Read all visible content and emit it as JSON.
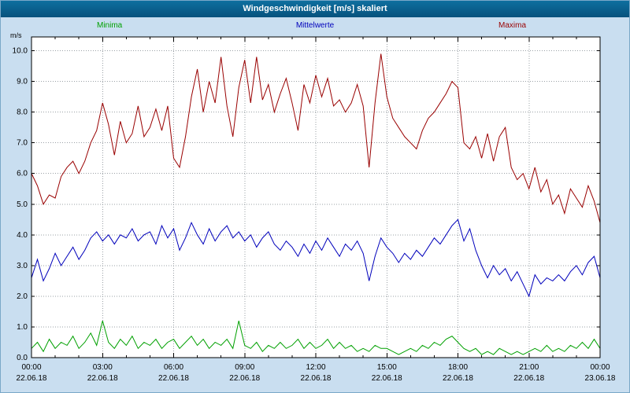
{
  "window": {
    "title": "Windgeschwindigkeit [m/s] skaliert"
  },
  "colors": {
    "page-bg": "#c9def0",
    "titlebar-start": "#0e6f9f",
    "titlebar-end": "#07527d",
    "plot-bg": "#ffffff"
  },
  "chart_data": {
    "type": "line",
    "title": "Windgeschwindigkeit [m/s] skaliert",
    "ylabel_unit": "m/s",
    "ylim": [
      0,
      10.45
    ],
    "yticks": [
      "0.0",
      "1.0",
      "2.0",
      "3.0",
      "4.0",
      "5.0",
      "6.0",
      "7.0",
      "8.0",
      "9.0",
      "10.0"
    ],
    "x_range_hours": [
      0,
      24
    ],
    "x_step_hours": 0.25,
    "grid": true,
    "legend_position": "top",
    "xticks": [
      {
        "hour": 0,
        "time": "00:00",
        "date": "22.06.18"
      },
      {
        "hour": 3,
        "time": "03:00",
        "date": "22.06.18"
      },
      {
        "hour": 6,
        "time": "06:00",
        "date": "22.06.18"
      },
      {
        "hour": 9,
        "time": "09:00",
        "date": "22.06.18"
      },
      {
        "hour": 12,
        "time": "12:00",
        "date": "22.06.18"
      },
      {
        "hour": 15,
        "time": "15:00",
        "date": "22.06.18"
      },
      {
        "hour": 18,
        "time": "18:00",
        "date": "22.06.18"
      },
      {
        "hour": 21,
        "time": "21:00",
        "date": "22.06.18"
      },
      {
        "hour": 24,
        "time": "00:00",
        "date": "23.06.18"
      }
    ],
    "series": [
      {
        "name": "Minima",
        "color": "#00a000",
        "values": [
          0.3,
          0.5,
          0.2,
          0.6,
          0.3,
          0.5,
          0.4,
          0.7,
          0.3,
          0.5,
          0.8,
          0.4,
          1.2,
          0.5,
          0.3,
          0.6,
          0.4,
          0.7,
          0.3,
          0.5,
          0.4,
          0.6,
          0.3,
          0.5,
          0.6,
          0.3,
          0.5,
          0.7,
          0.4,
          0.6,
          0.3,
          0.5,
          0.4,
          0.6,
          0.3,
          1.2,
          0.4,
          0.3,
          0.5,
          0.2,
          0.4,
          0.3,
          0.5,
          0.3,
          0.4,
          0.6,
          0.3,
          0.5,
          0.3,
          0.4,
          0.6,
          0.3,
          0.5,
          0.3,
          0.4,
          0.2,
          0.3,
          0.2,
          0.4,
          0.3,
          0.3,
          0.2,
          0.1,
          0.2,
          0.3,
          0.2,
          0.4,
          0.3,
          0.5,
          0.4,
          0.6,
          0.7,
          0.5,
          0.3,
          0.2,
          0.3,
          0.1,
          0.2,
          0.1,
          0.3,
          0.2,
          0.1,
          0.2,
          0.1,
          0.2,
          0.3,
          0.2,
          0.4,
          0.2,
          0.3,
          0.2,
          0.4,
          0.3,
          0.5,
          0.3,
          0.6,
          0.3
        ]
      },
      {
        "name": "Mittelwerte",
        "color": "#0000bb",
        "values": [
          2.6,
          3.2,
          2.5,
          2.9,
          3.4,
          3.0,
          3.3,
          3.6,
          3.2,
          3.5,
          3.9,
          4.1,
          3.8,
          4.0,
          3.7,
          4.0,
          3.9,
          4.2,
          3.8,
          4.0,
          4.1,
          3.7,
          4.3,
          3.9,
          4.2,
          3.5,
          3.9,
          4.4,
          4.0,
          3.7,
          4.2,
          3.8,
          4.1,
          4.3,
          3.9,
          4.1,
          3.8,
          4.0,
          3.6,
          3.9,
          4.1,
          3.7,
          3.5,
          3.8,
          3.6,
          3.3,
          3.7,
          3.4,
          3.8,
          3.5,
          3.9,
          3.6,
          3.3,
          3.7,
          3.5,
          3.8,
          3.4,
          2.5,
          3.3,
          3.9,
          3.6,
          3.4,
          3.1,
          3.4,
          3.2,
          3.5,
          3.3,
          3.6,
          3.9,
          3.7,
          4.0,
          4.3,
          4.5,
          3.8,
          4.2,
          3.5,
          3.0,
          2.6,
          3.0,
          2.7,
          2.9,
          2.5,
          2.8,
          2.4,
          2.0,
          2.7,
          2.4,
          2.6,
          2.5,
          2.7,
          2.5,
          2.8,
          3.0,
          2.7,
          3.1,
          3.3,
          2.6
        ]
      },
      {
        "name": "Maxima",
        "color": "#990000",
        "values": [
          6.0,
          5.6,
          5.0,
          5.3,
          5.2,
          5.9,
          6.2,
          6.4,
          6.0,
          6.4,
          7.0,
          7.4,
          8.3,
          7.6,
          6.6,
          7.7,
          7.0,
          7.3,
          8.2,
          7.2,
          7.5,
          8.1,
          7.4,
          8.2,
          6.5,
          6.2,
          7.2,
          8.5,
          9.4,
          8.0,
          9.0,
          8.3,
          9.8,
          8.2,
          7.2,
          8.8,
          9.7,
          8.3,
          9.8,
          8.4,
          8.9,
          8.0,
          8.6,
          9.1,
          8.3,
          7.4,
          8.9,
          8.3,
          9.2,
          8.5,
          9.1,
          8.2,
          8.4,
          8.0,
          8.3,
          8.9,
          8.2,
          6.2,
          8.3,
          9.9,
          8.5,
          7.8,
          7.5,
          7.2,
          7.0,
          6.8,
          7.4,
          7.8,
          8.0,
          8.3,
          8.6,
          9.0,
          8.8,
          7.0,
          6.8,
          7.2,
          6.5,
          7.3,
          6.4,
          7.2,
          7.5,
          6.2,
          5.8,
          6.0,
          5.5,
          6.2,
          5.4,
          5.8,
          5.0,
          5.3,
          4.7,
          5.5,
          5.2,
          4.9,
          5.6,
          5.1,
          4.4
        ]
      }
    ]
  }
}
